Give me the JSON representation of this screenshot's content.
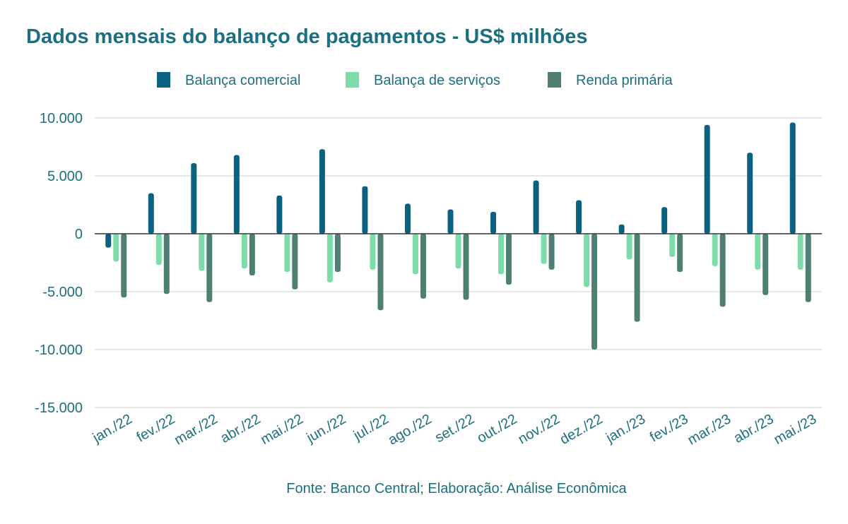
{
  "chart_data": {
    "type": "bar",
    "title": "Dados mensais do balanço de pagamentos - US$ milhões",
    "source": "Fonte: Banco Central; Elaboração: Análise Econômica",
    "categories": [
      "jan./22",
      "fev./22",
      "mar./22",
      "abr./22",
      "mai./22",
      "jun./22",
      "jul./22",
      "ago./22",
      "set./22",
      "out./22",
      "nov./22",
      "dez./22",
      "jan./23",
      "fev./23",
      "mar./23",
      "abr./23",
      "mai./23"
    ],
    "series": [
      {
        "name": "Balança comercial",
        "color": "#0b6180",
        "values": [
          -1200,
          3500,
          6100,
          6800,
          3300,
          7300,
          4100,
          2600,
          2100,
          1900,
          4600,
          2900,
          800,
          2300,
          9400,
          7000,
          9600
        ]
      },
      {
        "name": "Balança de serviços",
        "color": "#7ddcaa",
        "values": [
          -2400,
          -2700,
          -3200,
          -3000,
          -3300,
          -4200,
          -3100,
          -3500,
          -3000,
          -3500,
          -2600,
          -4600,
          -2200,
          -2000,
          -2800,
          -3100,
          -3100
        ]
      },
      {
        "name": "Renda primária",
        "color": "#4f7f72",
        "values": [
          -5500,
          -5200,
          -5900,
          -3600,
          -4800,
          -3300,
          -6600,
          -5600,
          -5700,
          -4400,
          -3100,
          -10000,
          -7600,
          -3300,
          -6300,
          -5300,
          -5900
        ]
      }
    ],
    "y_ticks": [
      "10.000",
      "5.000",
      "0",
      "-5.000",
      "-10.000",
      "-15.000"
    ],
    "y_tick_values": [
      10000,
      5000,
      0,
      -5000,
      -10000,
      -15000
    ],
    "ylim": [
      -15000,
      10000
    ],
    "legend_position": "top",
    "grid": true
  }
}
